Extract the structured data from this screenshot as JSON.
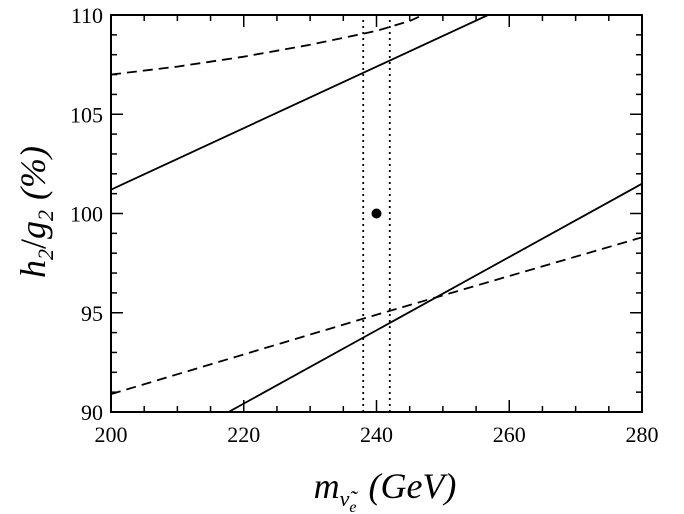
{
  "chart_data": {
    "type": "line",
    "xlim": [
      200,
      280
    ],
    "ylim": [
      90,
      110
    ],
    "x_ticks": [
      200,
      220,
      240,
      260,
      280
    ],
    "y_ticks": [
      90,
      95,
      100,
      105,
      110
    ],
    "x_tick_labels": [
      "200",
      "220",
      "240",
      "260",
      "280"
    ],
    "y_tick_labels": [
      "90",
      "95",
      "100",
      "105",
      "110"
    ],
    "xlabel": {
      "main": "m",
      "subscript": "ν̃",
      "subsubscript": "e",
      "unit": "(GeV)"
    },
    "ylabel": {
      "h": "h",
      "h_sub": "2",
      "slash": "/",
      "g": "g",
      "g_sub": "2",
      "unit": "(%)"
    },
    "grid": false,
    "legend": "none",
    "series": [
      {
        "style": "solid",
        "color": "#000000",
        "points": [
          [
            200,
            101.2
          ],
          [
            256.8,
            110
          ]
        ]
      },
      {
        "style": "solid",
        "color": "#000000",
        "points": [
          [
            217.7,
            90
          ],
          [
            280,
            101.5
          ]
        ]
      },
      {
        "style": "dashed",
        "color": "#000000",
        "points": [
          [
            200,
            107.0
          ],
          [
            210,
            107.4
          ],
          [
            220,
            107.9
          ],
          [
            230,
            108.5
          ],
          [
            240,
            109.2
          ],
          [
            245,
            109.7
          ],
          [
            247,
            110
          ]
        ]
      },
      {
        "style": "dashed",
        "color": "#000000",
        "points": [
          [
            200,
            90.9
          ],
          [
            240,
            94.9
          ],
          [
            280,
            98.8
          ]
        ]
      },
      {
        "style": "dotted",
        "color": "#000000",
        "points": [
          [
            238,
            90
          ],
          [
            238,
            110
          ]
        ]
      },
      {
        "style": "dotted",
        "color": "#000000",
        "points": [
          [
            242,
            90
          ],
          [
            242,
            110
          ]
        ]
      }
    ],
    "points": [
      {
        "x": 240,
        "y": 100,
        "color": "#000000"
      }
    ]
  }
}
